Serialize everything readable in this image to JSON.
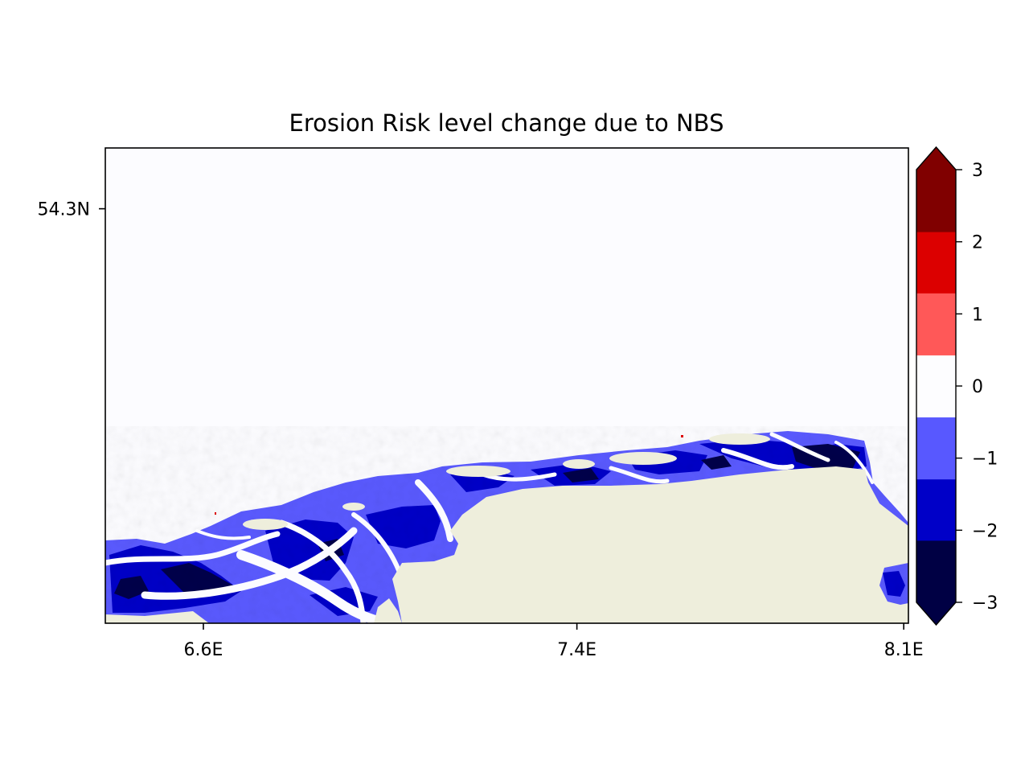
{
  "chart_data": {
    "type": "heatmap",
    "title": "Erosion Risk level change due to NBS",
    "x_ticks": [
      {
        "value": 6.6,
        "label": "6.6E"
      },
      {
        "value": 7.4,
        "label": "7.4E"
      },
      {
        "value": 8.1,
        "label": "8.1E"
      }
    ],
    "y_ticks": [
      {
        "value": 54.3,
        "label": "54.3N"
      }
    ],
    "xlim": [
      6.39,
      8.11
    ],
    "ylim": [
      53.55,
      54.41
    ],
    "colorbar": {
      "range": [
        -3,
        3
      ],
      "extend": "both",
      "ticks": [
        {
          "value": 3,
          "label": "3"
        },
        {
          "value": 2,
          "label": "2"
        },
        {
          "value": 1,
          "label": "1"
        },
        {
          "value": 0,
          "label": "0"
        },
        {
          "value": -1,
          "label": "−1"
        },
        {
          "value": -2,
          "label": "−2"
        },
        {
          "value": -3,
          "label": "−3"
        }
      ],
      "levels": [
        {
          "from": -3.0,
          "to": -2.14,
          "color": "#000044"
        },
        {
          "from": -2.14,
          "to": -1.29,
          "color": "#0000c8"
        },
        {
          "from": -1.29,
          "to": -0.43,
          "color": "#5858ff"
        },
        {
          "from": -0.43,
          "to": 0.43,
          "color": "#fdfdff"
        },
        {
          "from": 0.43,
          "to": 1.29,
          "color": "#ff5858"
        },
        {
          "from": 1.29,
          "to": 2.14,
          "color": "#dc0000"
        },
        {
          "from": 2.14,
          "to": 3.0,
          "color": "#800000"
        }
      ]
    },
    "colors": {
      "sea": "#fcfcff",
      "land": "#eeeedc",
      "risk_minus3": "#00004a",
      "risk_minus2": "#0000c8",
      "risk_minus1": "#5a5aff"
    }
  }
}
